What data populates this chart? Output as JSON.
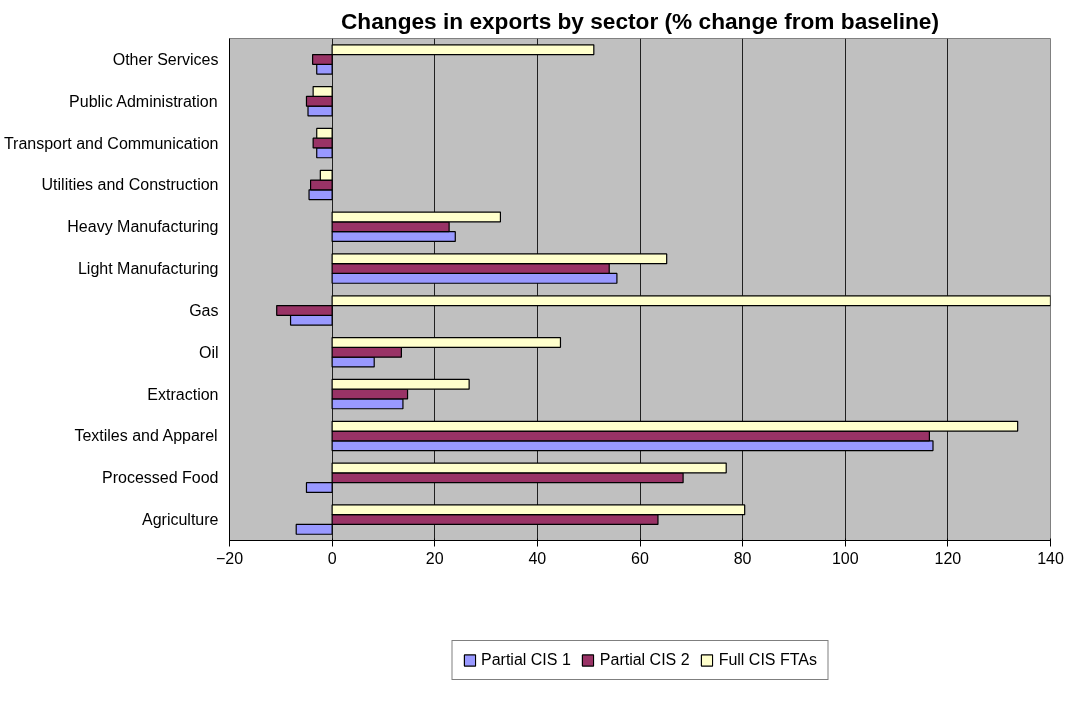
{
  "chart_data": {
    "type": "bar",
    "orientation": "horizontal",
    "title": "Changes in exports by sector (% change from baseline)",
    "categories": [
      "Other Services",
      "Public Administration",
      "Transport and Communication",
      "Utilities and Construction",
      "Heavy Manufacturing",
      "Light Manufacturing",
      "Gas",
      "Oil",
      "Extraction",
      "Textiles and Apparel",
      "Processed Food",
      "Agriculture"
    ],
    "series": [
      {
        "name": "Partial CIS 1",
        "color": "#9999ff",
        "values": [
          -3,
          -4.7,
          -3,
          -4.5,
          24,
          55.5,
          -8.1,
          8.2,
          13.8,
          117.1,
          -5,
          -7
        ]
      },
      {
        "name": "Partial CIS 2",
        "color": "#993366",
        "values": [
          -3.8,
          -5,
          -3.7,
          -4.2,
          22.8,
          54,
          -10.8,
          13.5,
          14.7,
          116.4,
          68.4,
          63.5
        ]
      },
      {
        "name": "Full CIS FTAs",
        "color": "#ffffcc",
        "values": [
          51,
          -3.7,
          -3,
          -2.3,
          32.8,
          65.2,
          140,
          44.5,
          26.7,
          133.6,
          76.8,
          80.4
        ]
      }
    ],
    "xlim": [
      -20,
      140
    ],
    "xticks": [
      -20,
      0,
      20,
      40,
      60,
      80,
      100,
      120,
      140
    ],
    "grid": "x",
    "legend": "bottom"
  }
}
